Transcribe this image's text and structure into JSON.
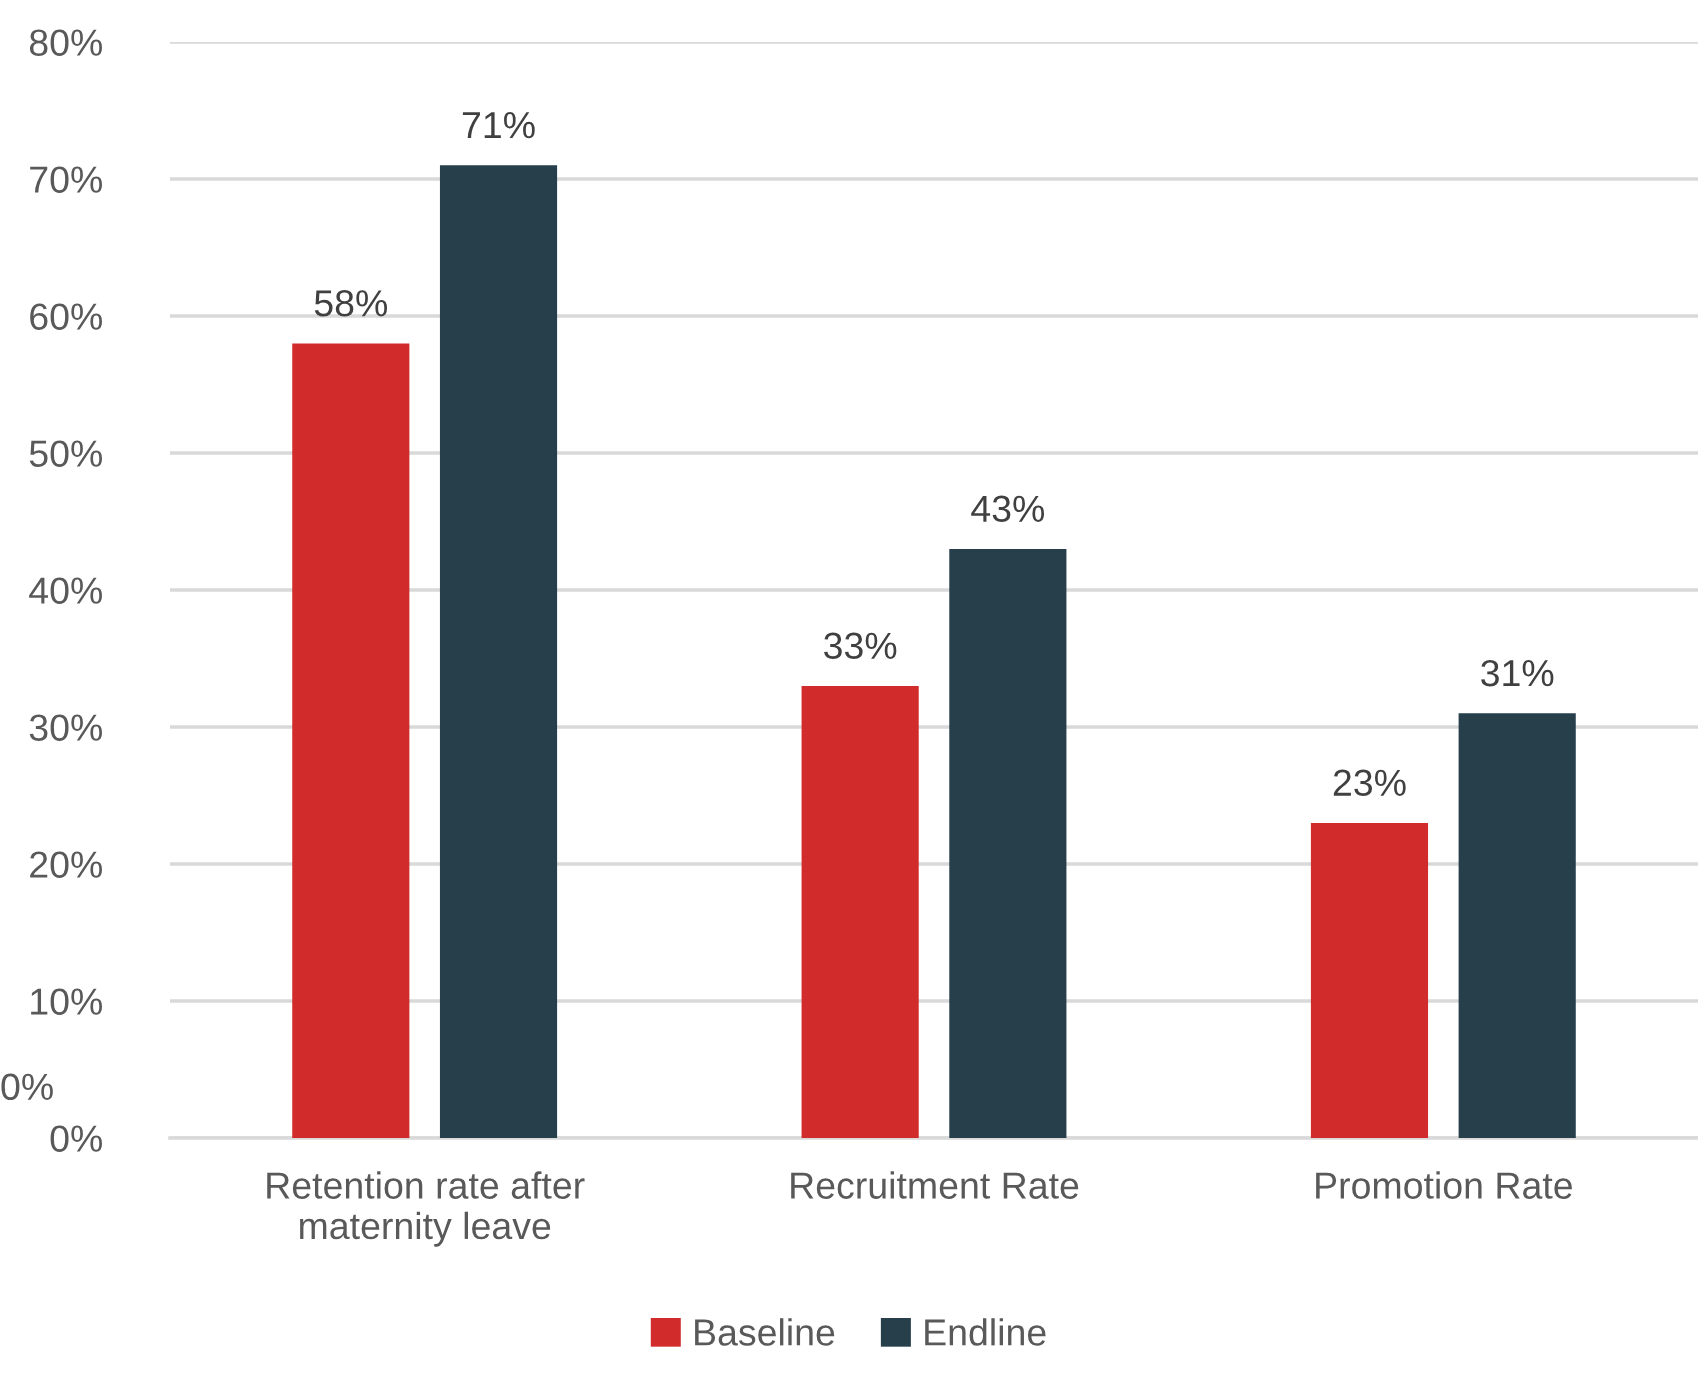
{
  "chart_data": {
    "type": "bar",
    "categories": [
      "Retention rate after\nmaternity leave",
      "Recruitment Rate",
      "Promotion Rate"
    ],
    "series": [
      {
        "name": "Baseline",
        "color": "#d22b2b",
        "values": [
          58,
          33,
          23
        ],
        "value_labels": [
          "58%",
          "33%",
          "23%"
        ]
      },
      {
        "name": "Endline",
        "color": "#263f4a",
        "values": [
          71,
          43,
          31
        ],
        "value_labels": [
          "71%",
          "43%",
          "31%"
        ]
      }
    ],
    "ylim": [
      0,
      80
    ],
    "yticks": [
      {
        "value": 0,
        "label": "0%"
      },
      {
        "value": 10,
        "label": "10%"
      },
      {
        "value": 20,
        "label": "20%"
      },
      {
        "value": 30,
        "label": "30%"
      },
      {
        "value": 40,
        "label": "40%"
      },
      {
        "value": 50,
        "label": "50%"
      },
      {
        "value": 60,
        "label": "60%"
      },
      {
        "value": 70,
        "label": "70%"
      },
      {
        "value": 80,
        "label": "80%"
      }
    ],
    "annotations": [
      "0%"
    ],
    "grid": "y",
    "legend": "bottom"
  }
}
